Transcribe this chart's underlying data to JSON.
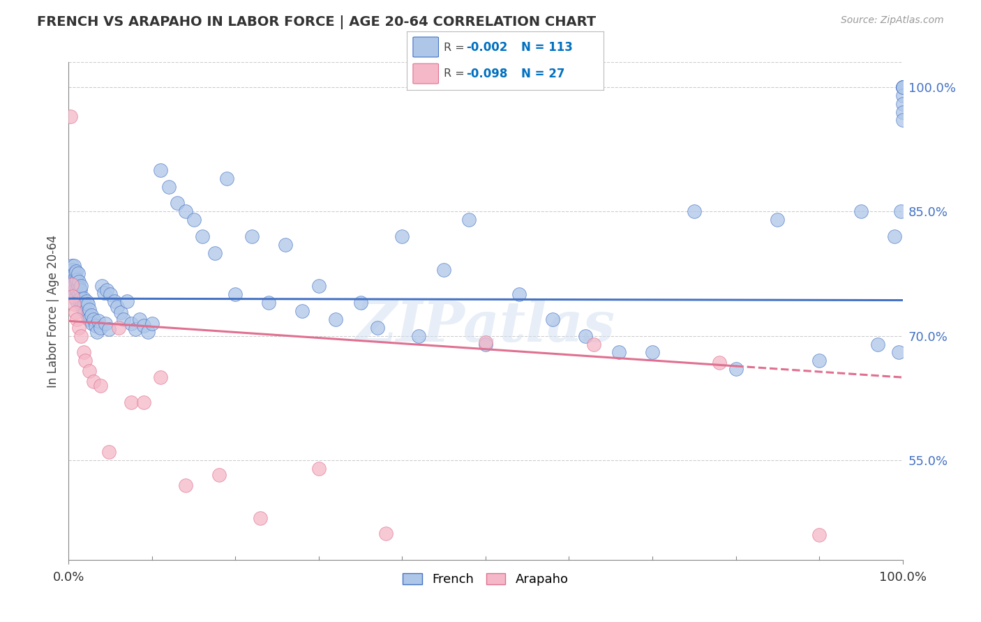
{
  "title": "FRENCH VS ARAPAHO IN LABOR FORCE | AGE 20-64 CORRELATION CHART",
  "source_text": "Source: ZipAtlas.com",
  "ylabel": "In Labor Force | Age 20-64",
  "xlim": [
    0.0,
    1.0
  ],
  "ylim": [
    0.43,
    1.03
  ],
  "yticks": [
    0.55,
    0.7,
    0.85,
    1.0
  ],
  "ytick_labels": [
    "55.0%",
    "70.0%",
    "85.0%",
    "100.0%"
  ],
  "french_R": -0.002,
  "french_N": 113,
  "arapaho_R": -0.098,
  "arapaho_N": 27,
  "french_color": "#aec6e8",
  "arapaho_color": "#f4b8c8",
  "french_line_color": "#4472c4",
  "arapaho_line_color": "#e07090",
  "legend_R_color": "#0070c0",
  "background_color": "#ffffff",
  "grid_color": "#cccccc",
  "watermark_text": "ZIPatlas",
  "french_line_y0": 0.745,
  "french_line_y1": 0.743,
  "arapaho_line_y0": 0.718,
  "arapaho_line_y1": 0.65,
  "arapaho_line_solid_end": 0.8,
  "french_x": [
    0.002,
    0.003,
    0.003,
    0.004,
    0.004,
    0.004,
    0.005,
    0.005,
    0.005,
    0.006,
    0.006,
    0.006,
    0.006,
    0.007,
    0.007,
    0.007,
    0.008,
    0.008,
    0.008,
    0.009,
    0.009,
    0.01,
    0.01,
    0.01,
    0.011,
    0.011,
    0.012,
    0.012,
    0.013,
    0.013,
    0.014,
    0.014,
    0.015,
    0.015,
    0.016,
    0.017,
    0.018,
    0.019,
    0.02,
    0.021,
    0.022,
    0.023,
    0.024,
    0.025,
    0.027,
    0.028,
    0.03,
    0.032,
    0.034,
    0.036,
    0.038,
    0.04,
    0.042,
    0.044,
    0.046,
    0.048,
    0.05,
    0.055,
    0.058,
    0.062,
    0.066,
    0.07,
    0.075,
    0.08,
    0.085,
    0.09,
    0.095,
    0.1,
    0.11,
    0.12,
    0.13,
    0.14,
    0.15,
    0.16,
    0.175,
    0.19,
    0.2,
    0.22,
    0.24,
    0.26,
    0.28,
    0.3,
    0.32,
    0.35,
    0.37,
    0.4,
    0.42,
    0.45,
    0.48,
    0.5,
    0.54,
    0.58,
    0.62,
    0.66,
    0.7,
    0.75,
    0.8,
    0.85,
    0.9,
    0.95,
    0.97,
    0.99,
    0.995,
    0.998,
    1.0,
    1.0,
    1.0,
    1.0,
    1.0,
    1.0,
    1.0,
    1.0,
    1.0
  ],
  "french_y": [
    0.77,
    0.778,
    0.755,
    0.785,
    0.762,
    0.775,
    0.768,
    0.755,
    0.78,
    0.76,
    0.772,
    0.785,
    0.75,
    0.762,
    0.775,
    0.755,
    0.758,
    0.77,
    0.745,
    0.765,
    0.778,
    0.755,
    0.768,
    0.742,
    0.76,
    0.775,
    0.75,
    0.765,
    0.745,
    0.758,
    0.74,
    0.755,
    0.745,
    0.76,
    0.738,
    0.732,
    0.745,
    0.738,
    0.73,
    0.742,
    0.725,
    0.738,
    0.72,
    0.732,
    0.725,
    0.715,
    0.72,
    0.712,
    0.705,
    0.718,
    0.71,
    0.76,
    0.752,
    0.715,
    0.755,
    0.708,
    0.75,
    0.742,
    0.735,
    0.728,
    0.72,
    0.742,
    0.715,
    0.708,
    0.72,
    0.712,
    0.705,
    0.715,
    0.9,
    0.88,
    0.86,
    0.85,
    0.84,
    0.82,
    0.8,
    0.89,
    0.75,
    0.82,
    0.74,
    0.81,
    0.73,
    0.76,
    0.72,
    0.74,
    0.71,
    0.82,
    0.7,
    0.78,
    0.84,
    0.69,
    0.75,
    0.72,
    0.7,
    0.68,
    0.68,
    0.85,
    0.66,
    0.84,
    0.67,
    0.85,
    0.69,
    0.82,
    0.68,
    0.85,
    1.0,
    1.0,
    1.0,
    1.0,
    0.99,
    0.98,
    0.97,
    0.96,
    1.0
  ],
  "arapaho_x": [
    0.002,
    0.004,
    0.005,
    0.006,
    0.008,
    0.01,
    0.012,
    0.015,
    0.018,
    0.02,
    0.025,
    0.03,
    0.038,
    0.048,
    0.06,
    0.075,
    0.09,
    0.11,
    0.14,
    0.18,
    0.23,
    0.3,
    0.38,
    0.5,
    0.63,
    0.78,
    0.9
  ],
  "arapaho_y": [
    0.965,
    0.762,
    0.748,
    0.738,
    0.728,
    0.72,
    0.71,
    0.7,
    0.68,
    0.67,
    0.658,
    0.645,
    0.64,
    0.56,
    0.71,
    0.62,
    0.62,
    0.65,
    0.52,
    0.532,
    0.48,
    0.54,
    0.462,
    0.692,
    0.69,
    0.668,
    0.46
  ]
}
